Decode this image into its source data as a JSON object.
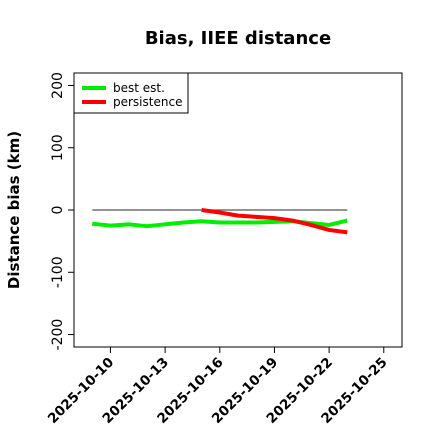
{
  "chart_data": {
    "type": "line",
    "title": "Bias, IIEE distance",
    "xlabel": "",
    "ylabel": "Distance bias (km)",
    "xlim": [
      "2025-10-08",
      "2025-10-26"
    ],
    "ylim": [
      -220,
      220
    ],
    "x_ticks": [
      "2025-10-10",
      "2025-10-13",
      "2025-10-16",
      "2025-10-19",
      "2025-10-22",
      "2025-10-25"
    ],
    "y_ticks": [
      -200,
      -100,
      0,
      100,
      200
    ],
    "legend_position": "top-left",
    "reference_line": {
      "y": 0,
      "color": "#555555",
      "x": [
        "2025-10-09",
        "2025-10-23"
      ]
    },
    "series": [
      {
        "name": "best est.",
        "color": "#00ee00",
        "x": [
          "2025-10-09",
          "2025-10-10",
          "2025-10-11",
          "2025-10-12",
          "2025-10-13",
          "2025-10-14",
          "2025-10-15",
          "2025-10-16",
          "2025-10-17",
          "2025-10-18",
          "2025-10-19",
          "2025-10-20",
          "2025-10-21",
          "2025-10-22",
          "2025-10-23"
        ],
        "y": [
          -22,
          -25,
          -23,
          -26,
          -23,
          -20,
          -18,
          -20,
          -20,
          -20,
          -19,
          -18,
          -21,
          -24,
          -17
        ]
      },
      {
        "name": "persistence",
        "color": "#ff0000",
        "x": [
          "2025-10-15",
          "2025-10-16",
          "2025-10-17",
          "2025-10-18",
          "2025-10-19",
          "2025-10-20",
          "2025-10-21",
          "2025-10-22",
          "2025-10-23"
        ],
        "y": [
          0,
          -4,
          -9,
          -11,
          -13,
          -17,
          -24,
          -32,
          -36
        ]
      }
    ]
  }
}
